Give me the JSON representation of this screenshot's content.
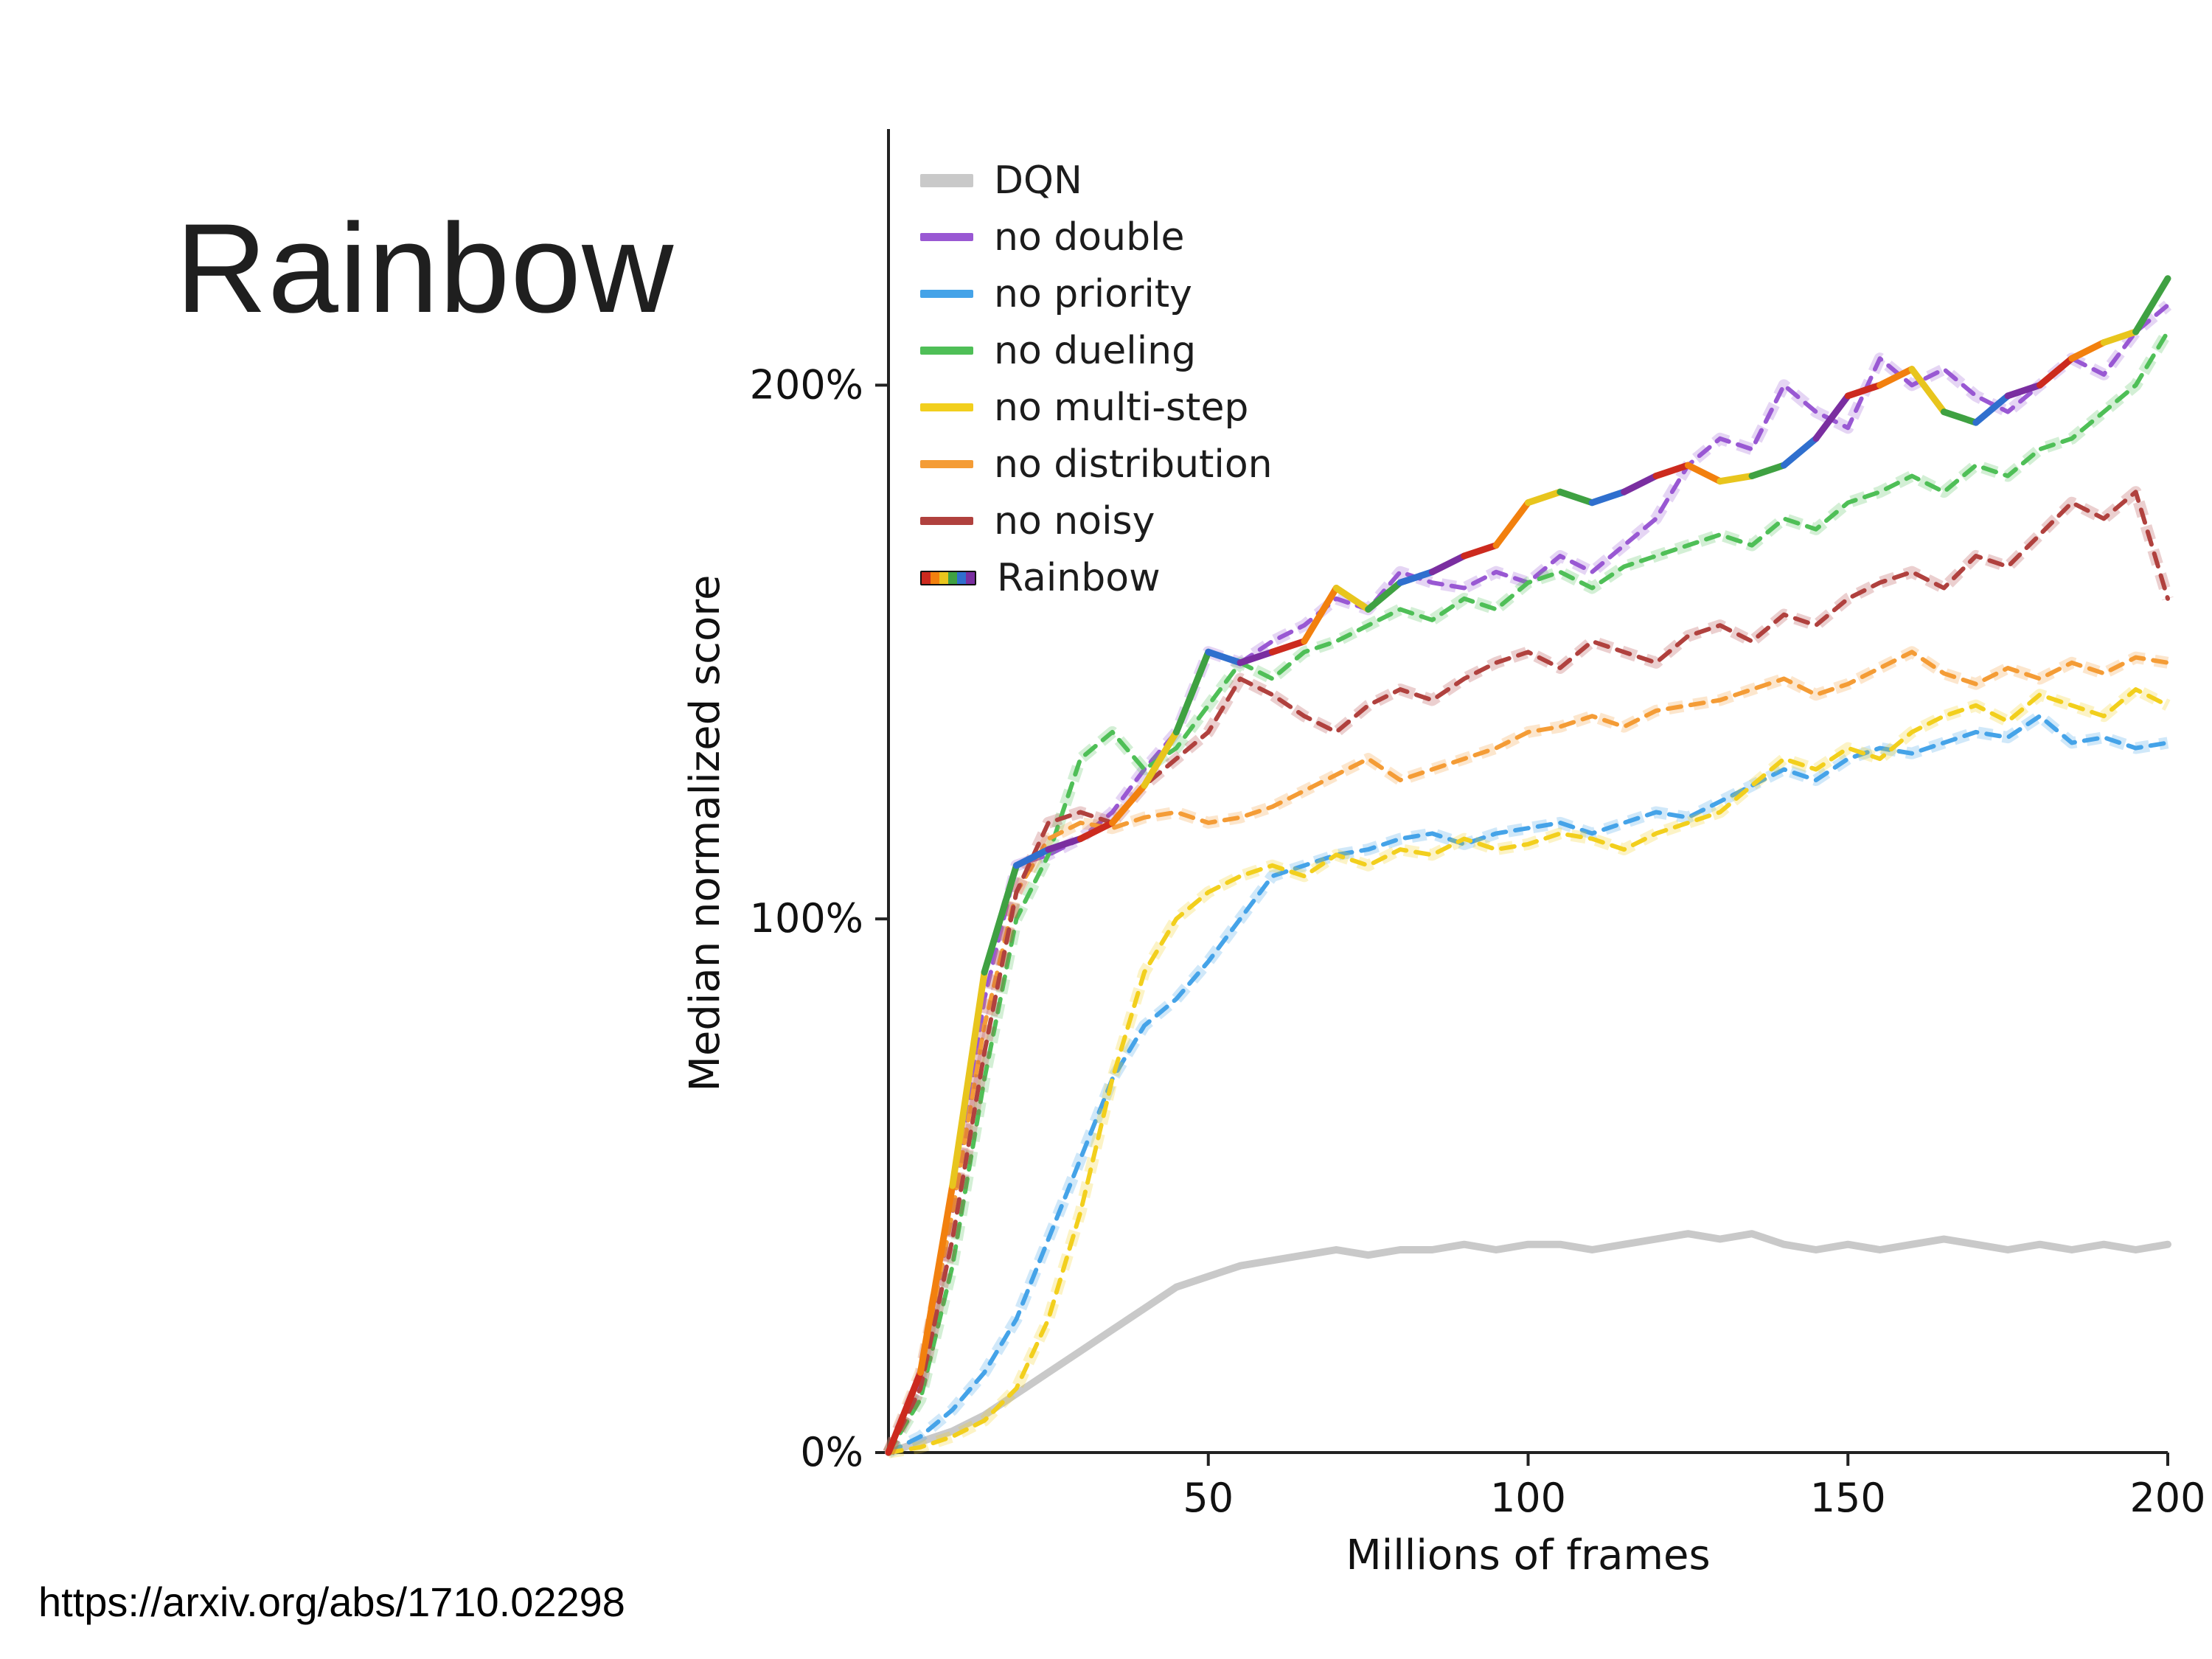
{
  "title": "Rainbow",
  "footer_url": "https://arxiv.org/abs/1710.02298",
  "chart_data": {
    "type": "line",
    "title": "",
    "xlabel": "Millions of frames",
    "ylabel": "Median normalized score",
    "xlim": [
      0,
      200
    ],
    "ylim": [
      0,
      248
    ],
    "xticks": [
      50,
      100,
      150,
      200
    ],
    "yticks": [
      {
        "v": 0,
        "label": "0%"
      },
      {
        "v": 100,
        "label": "100%"
      },
      {
        "v": 200,
        "label": "200%"
      }
    ],
    "grid": false,
    "legend_position": "top-left",
    "rainbow_palette": [
      "#cc2a1e",
      "#f2800e",
      "#e8c51d",
      "#3fa142",
      "#2f6fce",
      "#7a2ea0"
    ],
    "x": [
      0,
      5,
      10,
      15,
      20,
      25,
      30,
      35,
      40,
      45,
      50,
      55,
      60,
      65,
      70,
      75,
      80,
      85,
      90,
      95,
      100,
      105,
      110,
      115,
      120,
      125,
      130,
      135,
      140,
      145,
      150,
      155,
      160,
      165,
      170,
      175,
      180,
      185,
      190,
      195,
      200
    ],
    "series": [
      {
        "key": "dqn",
        "name": "DQN",
        "color": "#c9c9c9",
        "dash": false,
        "width": 10,
        "rainbow": false,
        "values": [
          0,
          2,
          4,
          7,
          11,
          15,
          19,
          23,
          27,
          31,
          33,
          35,
          36,
          37,
          38,
          37,
          38,
          38,
          39,
          38,
          39,
          39,
          38,
          39,
          40,
          41,
          40,
          41,
          39,
          38,
          39,
          38,
          39,
          40,
          39,
          38,
          39,
          38,
          39,
          38,
          39
        ]
      },
      {
        "key": "no-double",
        "name": "no double",
        "color": "#9958d3",
        "dash": true,
        "width": 6,
        "rainbow": false,
        "values": [
          0,
          14,
          45,
          85,
          110,
          112,
          115,
          120,
          128,
          135,
          150,
          148,
          152,
          155,
          160,
          158,
          165,
          163,
          162,
          165,
          163,
          168,
          165,
          170,
          175,
          185,
          190,
          188,
          200,
          195,
          192,
          205,
          200,
          203,
          198,
          195,
          200,
          205,
          202,
          210,
          215
        ]
      },
      {
        "key": "no-priority",
        "name": "no priority",
        "color": "#45a3e8",
        "dash": true,
        "width": 6,
        "rainbow": false,
        "values": [
          0,
          3,
          8,
          15,
          25,
          40,
          55,
          70,
          80,
          85,
          92,
          100,
          108,
          110,
          112,
          113,
          115,
          116,
          114,
          116,
          117,
          118,
          116,
          118,
          120,
          119,
          122,
          125,
          128,
          126,
          130,
          132,
          131,
          133,
          135,
          134,
          138,
          133,
          134,
          132,
          133
        ]
      },
      {
        "key": "no-dueling",
        "name": "no dueling",
        "color": "#4fbf57",
        "dash": true,
        "width": 6,
        "rainbow": false,
        "values": [
          0,
          10,
          35,
          70,
          100,
          112,
          130,
          135,
          128,
          132,
          140,
          148,
          145,
          150,
          152,
          155,
          158,
          156,
          160,
          158,
          163,
          165,
          162,
          166,
          168,
          170,
          172,
          170,
          175,
          173,
          178,
          180,
          183,
          180,
          185,
          183,
          188,
          190,
          195,
          200,
          210
        ]
      },
      {
        "key": "no-multi-step",
        "name": "no multi-step",
        "color": "#f2cf1d",
        "dash": true,
        "width": 6,
        "rainbow": false,
        "values": [
          0,
          1,
          3,
          6,
          12,
          25,
          45,
          70,
          90,
          100,
          105,
          108,
          110,
          108,
          112,
          110,
          113,
          112,
          115,
          113,
          114,
          116,
          115,
          113,
          116,
          118,
          120,
          125,
          130,
          128,
          132,
          130,
          135,
          138,
          140,
          137,
          142,
          140,
          138,
          143,
          140
        ]
      },
      {
        "key": "no-distribution",
        "name": "no distribution",
        "color": "#f49c36",
        "dash": true,
        "width": 6,
        "rainbow": false,
        "values": [
          0,
          15,
          45,
          80,
          105,
          115,
          118,
          117,
          119,
          120,
          118,
          119,
          121,
          124,
          127,
          130,
          126,
          128,
          130,
          132,
          135,
          136,
          138,
          136,
          139,
          140,
          141,
          143,
          145,
          142,
          144,
          147,
          150,
          146,
          144,
          147,
          145,
          148,
          146,
          149,
          148
        ]
      },
      {
        "key": "no-noisy",
        "name": "no noisy",
        "color": "#b0413e",
        "dash": true,
        "width": 6,
        "rainbow": false,
        "values": [
          0,
          12,
          40,
          75,
          105,
          118,
          120,
          118,
          125,
          130,
          135,
          145,
          142,
          138,
          135,
          140,
          143,
          141,
          145,
          148,
          150,
          147,
          152,
          150,
          148,
          153,
          155,
          152,
          157,
          155,
          160,
          163,
          165,
          162,
          168,
          166,
          172,
          178,
          175,
          180,
          160
        ]
      },
      {
        "key": "rainbow",
        "name": "Rainbow",
        "color": "#cc2a1e",
        "dash": false,
        "width": 7,
        "rainbow": true,
        "values": [
          0,
          15,
          50,
          90,
          110,
          113,
          115,
          118,
          125,
          135,
          150,
          148,
          150,
          152,
          162,
          158,
          163,
          165,
          168,
          170,
          178,
          180,
          178,
          180,
          183,
          185,
          182,
          183,
          185,
          190,
          198,
          200,
          203,
          195,
          193,
          198,
          200,
          205,
          208,
          210,
          220
        ]
      }
    ]
  }
}
